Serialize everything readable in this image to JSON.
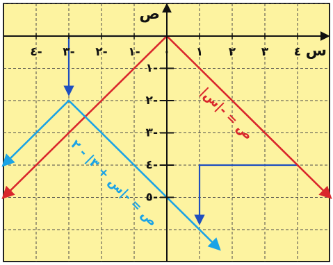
{
  "chart_data": {
    "type": "line",
    "xlim": [
      -5,
      5
    ],
    "ylim": [
      -7,
      1
    ],
    "grid": true,
    "background_color": "#fdf3a0",
    "grid_color": "#4a4a4a",
    "x_axis_label": "س",
    "y_axis_label": "ص",
    "x_ticks": [
      {
        "value": -4,
        "label": "٤-"
      },
      {
        "value": -3,
        "label": "٣-"
      },
      {
        "value": -2,
        "label": "٢-"
      },
      {
        "value": -1,
        "label": "١-"
      },
      {
        "value": 0,
        "label": "٠"
      },
      {
        "value": 1,
        "label": "١"
      },
      {
        "value": 2,
        "label": "٢"
      },
      {
        "value": 3,
        "label": "٣"
      },
      {
        "value": 4,
        "label": "٤"
      }
    ],
    "y_ticks": [
      {
        "value": -1,
        "label": "١-"
      },
      {
        "value": -2,
        "label": "٢-"
      },
      {
        "value": -3,
        "label": "٣-"
      },
      {
        "value": -4,
        "label": "٤-"
      },
      {
        "value": -5,
        "label": "٥-"
      }
    ],
    "series": [
      {
        "name": "ص = -|س|",
        "color": "#d9262c",
        "x": [
          -5,
          0,
          5
        ],
        "y": [
          -5,
          0,
          -5
        ]
      },
      {
        "name": "ص = -|س + ٣| - ٢",
        "color": "#1aa3e6",
        "x": [
          -5,
          -3,
          1.6
        ],
        "y": [
          -4,
          -2,
          -6.6
        ]
      }
    ],
    "guide_arrows": [
      {
        "color": "#1f4fbf",
        "x": [
          0,
          -3,
          -3
        ],
        "y": [
          0,
          0,
          -1.8
        ]
      },
      {
        "color": "#1f4fbf",
        "x": [
          4,
          1,
          1
        ],
        "y": [
          -4,
          -4,
          -5.8
        ]
      }
    ]
  }
}
